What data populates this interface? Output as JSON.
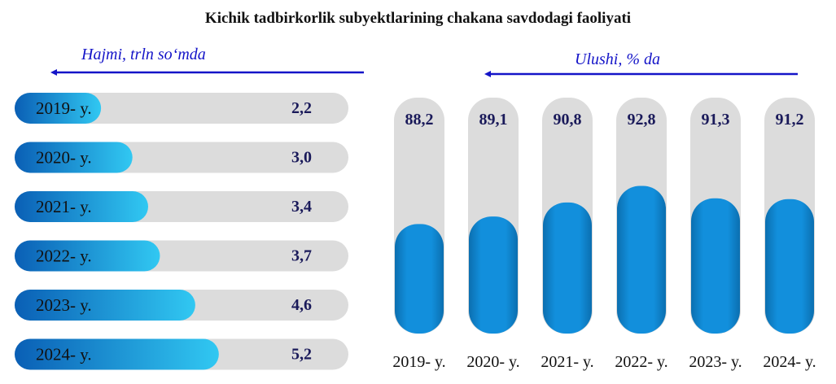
{
  "title": "Kichik tadbirkorlik subyektlarining chakana savdodagi faoliyati",
  "colors": {
    "arrow": "#1414c8",
    "track": "#dcdcdc",
    "bar_dark": "#0a63b8",
    "bar_light": "#2ec6f0",
    "column": "#0e8fdc",
    "column_dark": "#0b6fb0"
  },
  "chart_data": [
    {
      "type": "bar",
      "orientation": "horizontal",
      "subtitle": "Hajmi, trln so‘mda",
      "categories": [
        "2019- y.",
        "2020- y.",
        "2021- y.",
        "2022- y.",
        "2023- y.",
        "2024- y."
      ],
      "values": [
        2.2,
        3.0,
        3.4,
        3.7,
        4.6,
        5.2
      ],
      "value_labels": [
        "2,2",
        "3,0",
        "3,4",
        "3,7",
        "4,6",
        "5,2"
      ],
      "xlim": [
        0,
        8.5
      ]
    },
    {
      "type": "bar",
      "orientation": "vertical",
      "subtitle": "Ulushi, % da",
      "categories": [
        "2019- y.",
        "2020- y.",
        "2021- y.",
        "2022- y.",
        "2023- y.",
        "2024- y."
      ],
      "values": [
        88.2,
        89.1,
        90.8,
        92.8,
        91.3,
        91.2
      ],
      "value_labels": [
        "88,2",
        "89,1",
        "90,8",
        "92,8",
        "91,3",
        "91,2"
      ],
      "ylim": [
        0,
        100
      ]
    }
  ]
}
